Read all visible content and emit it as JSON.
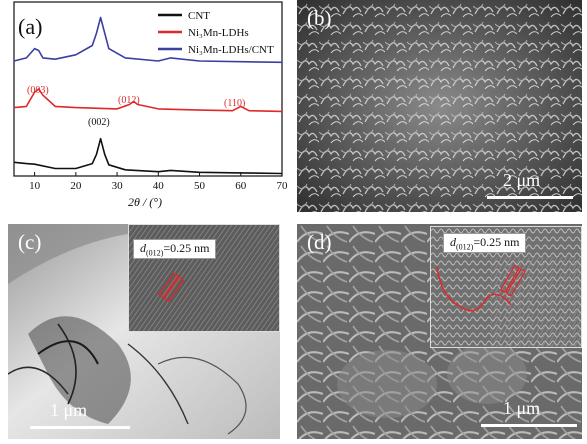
{
  "panels": {
    "a": {
      "label": "(a)",
      "xlabel": "2θ / (°)",
      "xticks": [
        "10",
        "20",
        "30",
        "40",
        "50",
        "60",
        "70"
      ],
      "legend": [
        "CNT",
        "Ni₃Mn-LDHs",
        "Ni₃Mn-LDHs/CNT"
      ],
      "peak_labels": {
        "p003": "(003)",
        "p012": "(012)",
        "p110": "(110)",
        "p002": "(002)"
      }
    },
    "b": {
      "label": "(b)",
      "scalebar": "2 μm"
    },
    "c": {
      "label": "(c)",
      "scalebar": "1 μm",
      "d_prefix": "d",
      "d_sub": "(012)",
      "d_value": "=0.25 nm"
    },
    "d": {
      "label": "(d)",
      "scalebar": "1 μm",
      "d_prefix": "d",
      "d_sub": "(012)",
      "d_value": "=0.25 nm"
    }
  },
  "chart_data": {
    "type": "line",
    "xlabel": "2θ / (°)",
    "xlim": [
      5,
      70
    ],
    "colors": [
      "#111111",
      "#e0282a",
      "#3a3fa0"
    ],
    "series": [
      {
        "name": "CNT",
        "x": [
          5,
          8,
          10,
          15,
          20,
          24,
          25,
          26,
          27,
          28,
          32,
          40,
          43,
          50,
          60,
          70
        ],
        "y": [
          0.22,
          0.2,
          0.19,
          0.12,
          0.12,
          0.2,
          0.35,
          0.6,
          0.35,
          0.18,
          0.1,
          0.07,
          0.09,
          0.06,
          0.05,
          0.04
        ]
      },
      {
        "name": "Ni₃Mn-LDHs",
        "x": [
          5,
          8,
          10,
          11,
          12,
          15,
          20,
          30,
          33,
          34,
          35,
          40,
          50,
          58,
          60,
          62,
          70
        ],
        "y": [
          1.1,
          1.12,
          1.35,
          1.4,
          1.3,
          1.12,
          1.1,
          1.08,
          1.15,
          1.2,
          1.15,
          1.08,
          1.06,
          1.05,
          1.12,
          1.05,
          1.04
        ]
      },
      {
        "name": "Ni₃Mn-LDHs/CNT",
        "x": [
          5,
          8,
          10,
          11,
          12,
          15,
          20,
          24,
          25,
          26,
          27,
          28,
          32,
          40,
          43,
          50,
          60,
          70
        ],
        "y": [
          1.85,
          1.9,
          2.05,
          2.02,
          1.9,
          1.88,
          1.95,
          2.1,
          2.3,
          2.55,
          2.3,
          2.05,
          1.9,
          1.85,
          1.9,
          1.85,
          1.84,
          1.83
        ]
      }
    ]
  }
}
